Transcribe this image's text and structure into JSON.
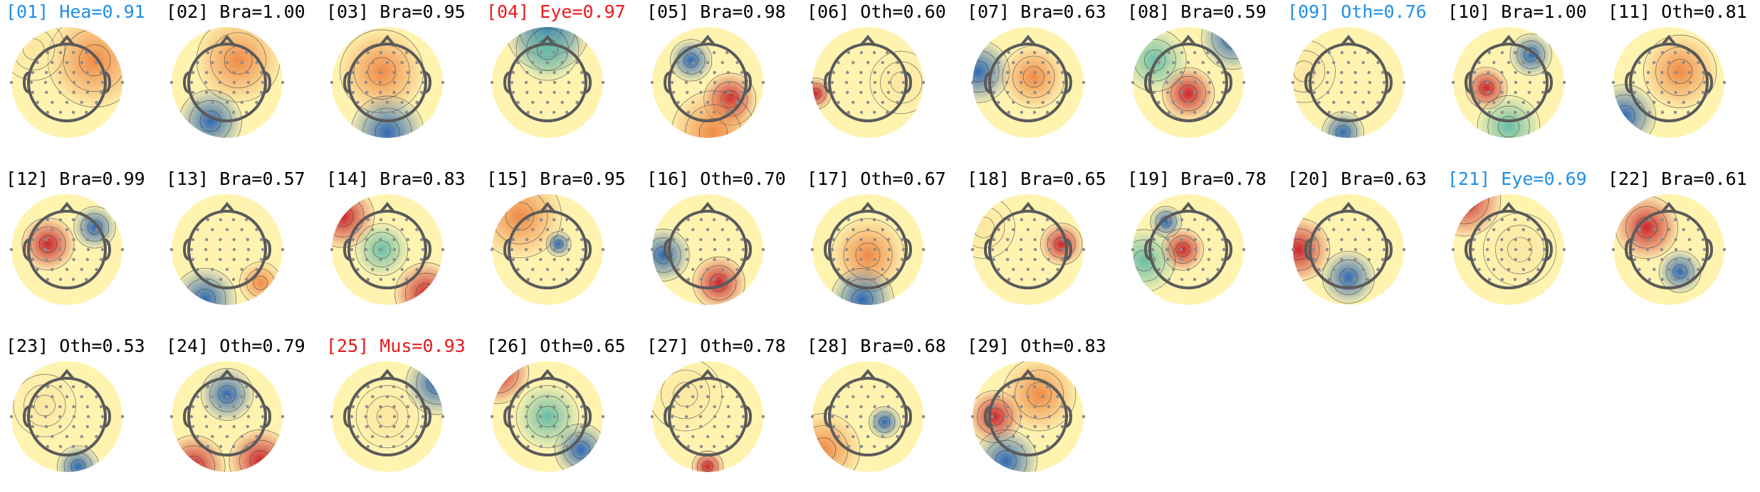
{
  "colors": {
    "black": "#000000",
    "blue": "#1f8ee6",
    "red": "#e8191b",
    "head": "#5a5a5a",
    "electrode": "#8c8c8c"
  },
  "components": [
    {
      "idx": "[01]",
      "label": "Hea=0.91",
      "color": "blue"
    },
    {
      "idx": "[02]",
      "label": "Bra=1.00",
      "color": "black"
    },
    {
      "idx": "[03]",
      "label": "Bra=0.95",
      "color": "black"
    },
    {
      "idx": "[04]",
      "label": "Eye=0.97",
      "color": "red"
    },
    {
      "idx": "[05]",
      "label": "Bra=0.98",
      "color": "black"
    },
    {
      "idx": "[06]",
      "label": "Oth=0.60",
      "color": "black"
    },
    {
      "idx": "[07]",
      "label": "Bra=0.63",
      "color": "black"
    },
    {
      "idx": "[08]",
      "label": "Bra=0.59",
      "color": "black"
    },
    {
      "idx": "[09]",
      "label": "Oth=0.76",
      "color": "blue"
    },
    {
      "idx": "[10]",
      "label": "Bra=1.00",
      "color": "black"
    },
    {
      "idx": "[11]",
      "label": "Oth=0.81",
      "color": "black"
    },
    {
      "idx": "[12]",
      "label": "Bra=0.99",
      "color": "black"
    },
    {
      "idx": "[13]",
      "label": "Bra=0.57",
      "color": "black"
    },
    {
      "idx": "[14]",
      "label": "Bra=0.83",
      "color": "black"
    },
    {
      "idx": "[15]",
      "label": "Bra=0.95",
      "color": "black"
    },
    {
      "idx": "[16]",
      "label": "Oth=0.70",
      "color": "black"
    },
    {
      "idx": "[17]",
      "label": "Oth=0.67",
      "color": "black"
    },
    {
      "idx": "[18]",
      "label": "Bra=0.65",
      "color": "black"
    },
    {
      "idx": "[19]",
      "label": "Bra=0.78",
      "color": "black"
    },
    {
      "idx": "[20]",
      "label": "Bra=0.63",
      "color": "black"
    },
    {
      "idx": "[21]",
      "label": "Eye=0.69",
      "color": "blue"
    },
    {
      "idx": "[22]",
      "label": "Bra=0.61",
      "color": "black"
    },
    {
      "idx": "[23]",
      "label": "Oth=0.53",
      "color": "black"
    },
    {
      "idx": "[24]",
      "label": "Oth=0.79",
      "color": "black"
    },
    {
      "idx": "[25]",
      "label": "Mus=0.93",
      "color": "red"
    },
    {
      "idx": "[26]",
      "label": "Oth=0.65",
      "color": "black"
    },
    {
      "idx": "[27]",
      "label": "Oth=0.78",
      "color": "black"
    },
    {
      "idx": "[28]",
      "label": "Bra=0.68",
      "color": "black"
    },
    {
      "idx": "[29]",
      "label": "Oth=0.83",
      "color": "black"
    }
  ]
}
